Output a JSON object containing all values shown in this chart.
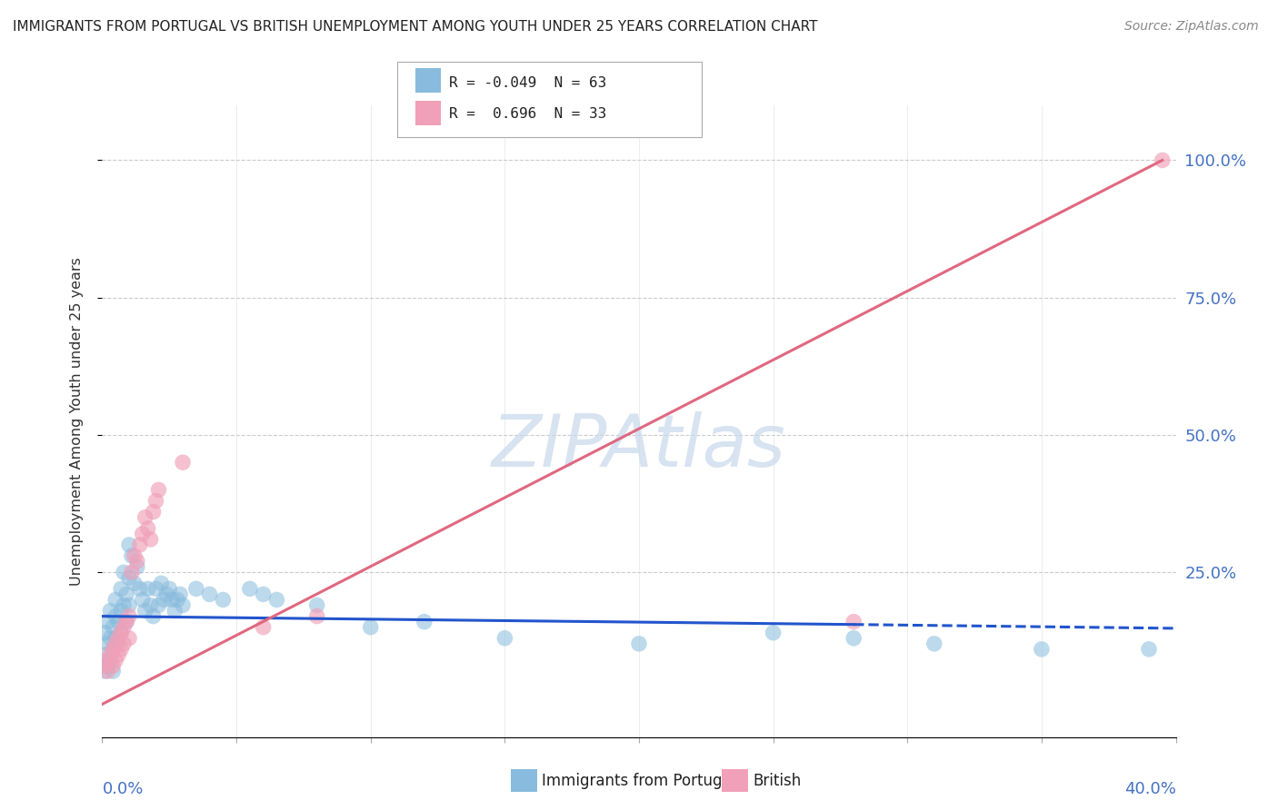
{
  "title": "IMMIGRANTS FROM PORTUGAL VS BRITISH UNEMPLOYMENT AMONG YOUTH UNDER 25 YEARS CORRELATION CHART",
  "source": "Source: ZipAtlas.com",
  "xlabel_bottom_left": "0.0%",
  "xlabel_bottom_right": "40.0%",
  "ylabel": "Unemployment Among Youth under 25 years",
  "ytick_labels": [
    "25.0%",
    "50.0%",
    "75.0%",
    "100.0%"
  ],
  "ytick_values": [
    0.25,
    0.5,
    0.75,
    1.0
  ],
  "legend_entries": [
    {
      "label": "R = -0.049  N = 63",
      "color": "#a8c4e0"
    },
    {
      "label": "R =  0.696  N = 33",
      "color": "#f4a0b0"
    }
  ],
  "xmin": 0.0,
  "xmax": 0.4,
  "ymin": -0.05,
  "ymax": 1.1,
  "blue_scatter": [
    [
      0.001,
      0.14
    ],
    [
      0.001,
      0.1
    ],
    [
      0.001,
      0.07
    ],
    [
      0.002,
      0.16
    ],
    [
      0.002,
      0.12
    ],
    [
      0.002,
      0.08
    ],
    [
      0.003,
      0.18
    ],
    [
      0.003,
      0.13
    ],
    [
      0.003,
      0.09
    ],
    [
      0.004,
      0.15
    ],
    [
      0.004,
      0.11
    ],
    [
      0.004,
      0.07
    ],
    [
      0.005,
      0.17
    ],
    [
      0.005,
      0.13
    ],
    [
      0.005,
      0.2
    ],
    [
      0.006,
      0.16
    ],
    [
      0.006,
      0.12
    ],
    [
      0.007,
      0.22
    ],
    [
      0.007,
      0.18
    ],
    [
      0.007,
      0.14
    ],
    [
      0.008,
      0.25
    ],
    [
      0.008,
      0.19
    ],
    [
      0.009,
      0.21
    ],
    [
      0.009,
      0.16
    ],
    [
      0.01,
      0.3
    ],
    [
      0.01,
      0.24
    ],
    [
      0.01,
      0.19
    ],
    [
      0.011,
      0.28
    ],
    [
      0.012,
      0.23
    ],
    [
      0.013,
      0.26
    ],
    [
      0.014,
      0.22
    ],
    [
      0.015,
      0.2
    ],
    [
      0.016,
      0.18
    ],
    [
      0.017,
      0.22
    ],
    [
      0.018,
      0.19
    ],
    [
      0.019,
      0.17
    ],
    [
      0.02,
      0.22
    ],
    [
      0.021,
      0.19
    ],
    [
      0.022,
      0.23
    ],
    [
      0.023,
      0.2
    ],
    [
      0.024,
      0.21
    ],
    [
      0.025,
      0.22
    ],
    [
      0.026,
      0.2
    ],
    [
      0.027,
      0.18
    ],
    [
      0.028,
      0.2
    ],
    [
      0.029,
      0.21
    ],
    [
      0.03,
      0.19
    ],
    [
      0.035,
      0.22
    ],
    [
      0.04,
      0.21
    ],
    [
      0.045,
      0.2
    ],
    [
      0.055,
      0.22
    ],
    [
      0.06,
      0.21
    ],
    [
      0.065,
      0.2
    ],
    [
      0.08,
      0.19
    ],
    [
      0.1,
      0.15
    ],
    [
      0.12,
      0.16
    ],
    [
      0.15,
      0.13
    ],
    [
      0.2,
      0.12
    ],
    [
      0.25,
      0.14
    ],
    [
      0.28,
      0.13
    ],
    [
      0.31,
      0.12
    ],
    [
      0.35,
      0.11
    ],
    [
      0.39,
      0.11
    ]
  ],
  "pink_scatter": [
    [
      0.001,
      0.08
    ],
    [
      0.002,
      0.07
    ],
    [
      0.002,
      0.09
    ],
    [
      0.003,
      0.1
    ],
    [
      0.004,
      0.08
    ],
    [
      0.004,
      0.11
    ],
    [
      0.005,
      0.12
    ],
    [
      0.005,
      0.09
    ],
    [
      0.006,
      0.13
    ],
    [
      0.006,
      0.1
    ],
    [
      0.007,
      0.14
    ],
    [
      0.007,
      0.11
    ],
    [
      0.008,
      0.15
    ],
    [
      0.008,
      0.12
    ],
    [
      0.009,
      0.16
    ],
    [
      0.01,
      0.17
    ],
    [
      0.01,
      0.13
    ],
    [
      0.011,
      0.25
    ],
    [
      0.012,
      0.28
    ],
    [
      0.013,
      0.27
    ],
    [
      0.014,
      0.3
    ],
    [
      0.015,
      0.32
    ],
    [
      0.016,
      0.35
    ],
    [
      0.017,
      0.33
    ],
    [
      0.018,
      0.31
    ],
    [
      0.019,
      0.36
    ],
    [
      0.02,
      0.38
    ],
    [
      0.021,
      0.4
    ],
    [
      0.03,
      0.45
    ],
    [
      0.06,
      0.15
    ],
    [
      0.08,
      0.17
    ],
    [
      0.28,
      0.16
    ],
    [
      0.395,
      1.0
    ]
  ],
  "blue_line_solid": {
    "x": [
      0.0,
      0.28
    ],
    "y": [
      0.17,
      0.155
    ]
  },
  "blue_line_dashed": {
    "x": [
      0.28,
      0.4
    ],
    "y": [
      0.155,
      0.148
    ]
  },
  "pink_line": {
    "x": [
      0.0,
      0.395
    ],
    "y": [
      0.01,
      1.0
    ]
  },
  "blue_line_color": "#2255cc",
  "pink_line_color": "#e06880",
  "blue_scatter_color": "#88bbdd",
  "pink_scatter_color": "#f0a0b8",
  "watermark": "ZIPAtlas",
  "watermark_color": "#c8d8ec",
  "background_color": "#ffffff",
  "grid_color": "#cccccc"
}
